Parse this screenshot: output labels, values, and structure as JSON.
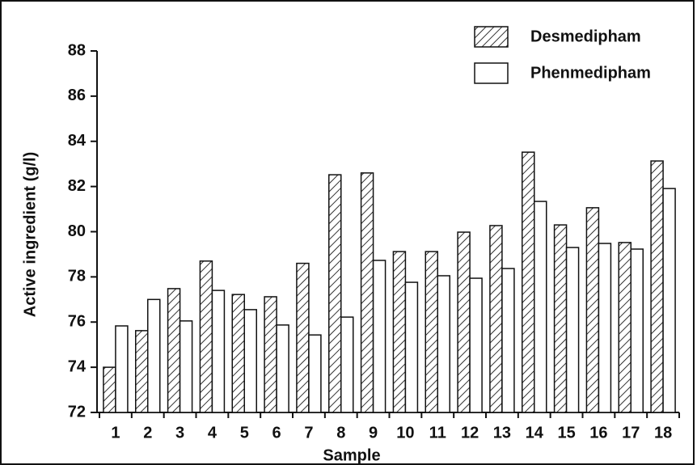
{
  "chart_data": {
    "type": "bar",
    "x_label": "Sample",
    "y_label": "Active ingredient (g/l)",
    "categories": [
      "1",
      "2",
      "3",
      "4",
      "5",
      "6",
      "7",
      "8",
      "9",
      "10",
      "11",
      "12",
      "13",
      "14",
      "15",
      "16",
      "17",
      "18"
    ],
    "series": [
      {
        "name": "Desmedipham",
        "color": "#000000",
        "hatch": true,
        "values": [
          74.0,
          75.62,
          77.48,
          78.7,
          77.22,
          77.12,
          78.6,
          82.52,
          82.6,
          79.12,
          79.12,
          79.98,
          80.27,
          83.52,
          80.3,
          81.06,
          79.52,
          83.13
        ]
      },
      {
        "name": "Phenmedipham",
        "color": "#ffffff",
        "hatch": false,
        "values": [
          75.83,
          77.0,
          76.05,
          77.4,
          76.55,
          75.87,
          75.43,
          76.22,
          78.73,
          77.76,
          78.05,
          77.94,
          78.37,
          81.34,
          79.3,
          79.48,
          79.23,
          81.91
        ]
      }
    ],
    "ylim": [
      72,
      88
    ],
    "yticks": [
      72,
      74,
      76,
      78,
      80,
      82,
      84,
      86,
      88
    ],
    "grid": false,
    "legend": "top-right"
  }
}
